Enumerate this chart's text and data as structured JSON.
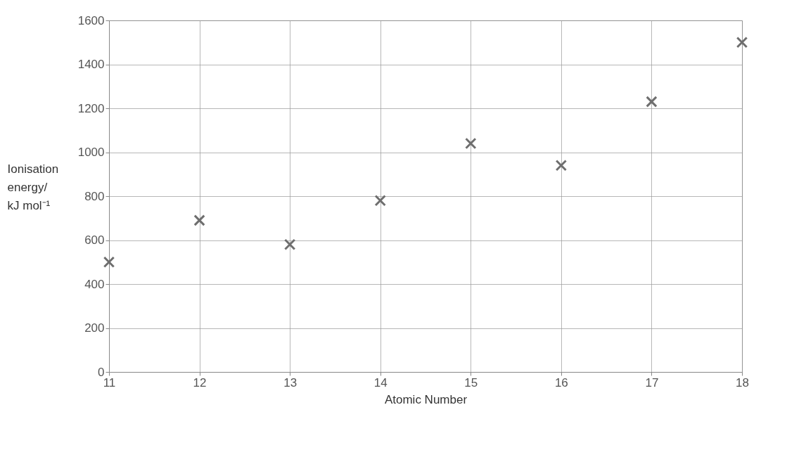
{
  "chart_data": {
    "type": "scatter",
    "xlabel": "Atomic Number",
    "ylabel": "Ionisation energy/ kJ mol⁻¹",
    "x": [
      11,
      12,
      13,
      14,
      15,
      16,
      17,
      18
    ],
    "values": [
      500,
      690,
      580,
      780,
      1040,
      940,
      1230,
      1500
    ],
    "color": "#6e6e6e",
    "marker": "cross",
    "grid": true,
    "xlim": [
      11,
      18
    ],
    "xticks": [
      11,
      12,
      13,
      14,
      15,
      16,
      17,
      18
    ],
    "ylim": [
      0,
      1600
    ],
    "yticks": [
      0,
      200,
      400,
      600,
      800,
      1000,
      1200,
      1400,
      1600
    ]
  }
}
